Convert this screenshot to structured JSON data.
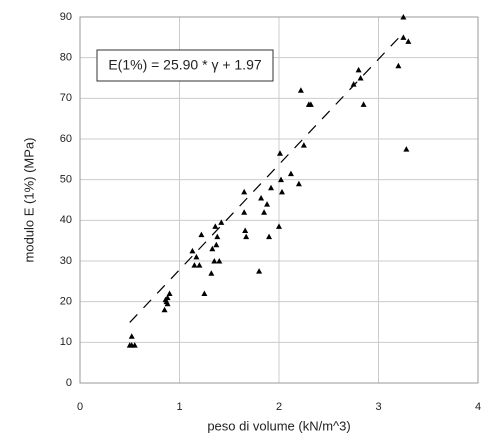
{
  "chart_data": {
    "type": "scatter",
    "annotation": "E(1%) = 25.90 * γ + 1.97",
    "x_label": "peso di volume (kN/m^3)",
    "y_label": "modulo E (1%)  (MPa)",
    "xlim": [
      0,
      4
    ],
    "xticks": [
      0,
      1,
      2,
      3,
      4
    ],
    "ylim": [
      0,
      90
    ],
    "yticks": [
      0,
      10,
      20,
      30,
      40,
      50,
      60,
      70,
      80,
      90
    ],
    "grid": true,
    "color": "#000000",
    "points": {
      "x": [
        0.5,
        0.52,
        0.55,
        0.52,
        0.85,
        0.87,
        0.88,
        0.9,
        0.86,
        0.88,
        1.13,
        1.15,
        1.17,
        1.2,
        1.22,
        1.25,
        1.32,
        1.33,
        1.35,
        1.36,
        1.37,
        1.38,
        1.4,
        1.42,
        1.65,
        1.65,
        1.66,
        1.67,
        1.8,
        1.82,
        1.85,
        1.88,
        1.9,
        1.92,
        2.0,
        2.01,
        2.02,
        2.03,
        2.12,
        2.2,
        2.22,
        2.25,
        2.3,
        2.32,
        2.75,
        2.8,
        2.82,
        2.85,
        3.2,
        3.25,
        3.25,
        3.3,
        3.28
      ],
      "values": [
        9.3,
        9.3,
        9.3,
        11.5,
        18,
        20,
        21,
        22,
        20.5,
        19.5,
        32.5,
        29,
        31,
        29,
        36.5,
        22,
        27,
        33,
        30,
        38.5,
        34,
        36,
        30,
        39.5,
        47,
        42,
        37.5,
        36,
        27.5,
        45.5,
        42,
        44,
        36,
        48,
        38.5,
        56.5,
        50,
        47,
        51.5,
        49,
        72,
        58.5,
        68.5,
        68.5,
        73.5,
        77,
        75,
        68.5,
        78,
        90,
        85,
        84,
        57.5
      ]
    },
    "trendline": {
      "x": [
        0.5,
        3.25
      ],
      "values": [
        14.9,
        86.1
      ],
      "color": "#000000"
    }
  }
}
